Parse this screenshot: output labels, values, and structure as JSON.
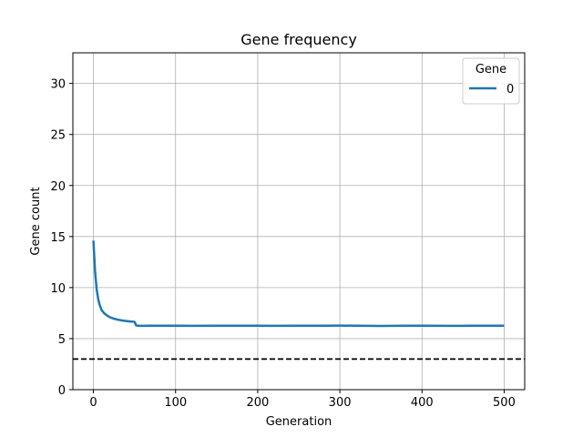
{
  "chart_data": {
    "type": "line",
    "title": "Gene frequency",
    "xlabel": "Generation",
    "ylabel": "Gene count",
    "xlim": [
      -25,
      525
    ],
    "ylim": [
      0,
      33
    ],
    "xticks": [
      0,
      100,
      200,
      300,
      400,
      500
    ],
    "yticks": [
      0,
      5,
      10,
      15,
      20,
      25,
      30
    ],
    "grid": true,
    "legend": {
      "title": "Gene",
      "placement": "top-right"
    },
    "series": [
      {
        "name": "0",
        "color": "#1f77b4",
        "x": [
          0,
          2,
          4,
          6,
          8,
          10,
          13,
          16,
          20,
          25,
          30,
          35,
          40,
          45,
          50,
          52,
          55,
          60,
          70,
          80,
          100,
          120,
          150,
          180,
          200,
          220,
          250,
          280,
          300,
          320,
          350,
          380,
          400,
          430,
          460,
          500
        ],
        "y": [
          14.6,
          11.6,
          9.8,
          8.8,
          8.2,
          7.8,
          7.5,
          7.3,
          7.1,
          6.95,
          6.85,
          6.78,
          6.72,
          6.68,
          6.65,
          6.3,
          6.25,
          6.25,
          6.27,
          6.26,
          6.27,
          6.25,
          6.27,
          6.26,
          6.26,
          6.25,
          6.26,
          6.27,
          6.28,
          6.26,
          6.24,
          6.26,
          6.27,
          6.25,
          6.26,
          6.26
        ]
      }
    ],
    "reference_lines": [
      {
        "y": 3,
        "style": "dashed",
        "color": "#000000"
      }
    ]
  }
}
